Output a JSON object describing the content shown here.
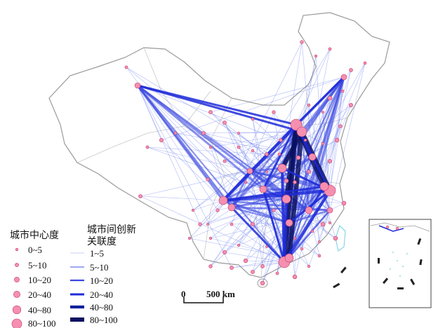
{
  "map": {
    "node_color": "#f58fb0",
    "node_stroke": "#c23b6b",
    "line_color": "#1f2bd8",
    "border_color": "#9a9a9a",
    "coast_color": "#6fcfe0"
  },
  "legend_centrality": {
    "title": "城市中心度",
    "items": [
      "0~5",
      "5~10",
      "10~20",
      "20~40",
      "40~80",
      "80~100"
    ]
  },
  "legend_links": {
    "title_line1": "城市间创新",
    "title_line2": "关联度",
    "items": [
      "1~5",
      "5~10",
      "10~20",
      "20~40",
      "40~80",
      "80~100"
    ]
  },
  "scalebar": {
    "zero": "0",
    "label": "500 km"
  }
}
